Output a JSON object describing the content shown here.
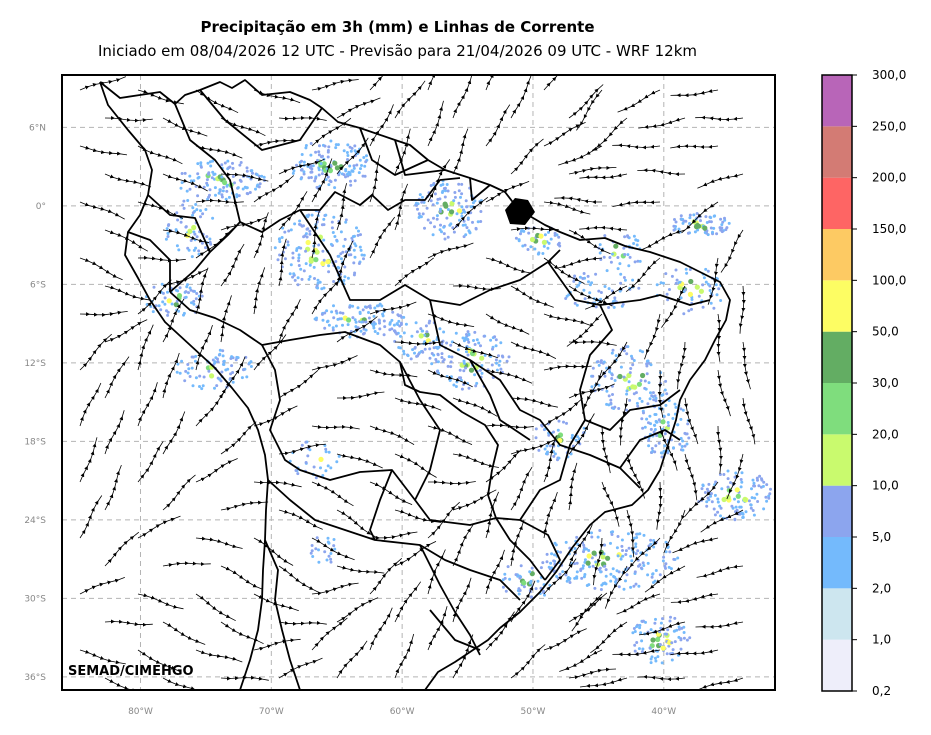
{
  "title": "Precipitação em 3h (mm) e Linhas de Corrente",
  "subtitle": "Iniciado em 08/04/2026 12 UTC - Previsão para 21/04/2026 09 UTC - WRF 12km",
  "credit": "SEMAD/CIMEHGO",
  "map": {
    "lon_range": [
      -86,
      -31.5
    ],
    "lat_range": [
      -37,
      10
    ],
    "lat_ticks": [
      {
        "value": 6,
        "label": "6°N"
      },
      {
        "value": 0,
        "label": "0°"
      },
      {
        "value": -6,
        "label": "6°S"
      },
      {
        "value": -12,
        "label": "12°S"
      },
      {
        "value": -18,
        "label": "18°S"
      },
      {
        "value": -24,
        "label": "24°S"
      },
      {
        "value": -30,
        "label": "30°S"
      },
      {
        "value": -36,
        "label": "36°S"
      }
    ],
    "lon_ticks": [
      {
        "value": -80,
        "label": "80°W"
      },
      {
        "value": -70,
        "label": "70°W"
      },
      {
        "value": -60,
        "label": "60°W"
      },
      {
        "value": -50,
        "label": "50°W"
      },
      {
        "value": -40,
        "label": "40°W"
      }
    ],
    "grid": true,
    "colors": {
      "streamline": "#000000",
      "border": "#000000",
      "grid": "#b4b4b4"
    }
  },
  "colorbar": {
    "labels": [
      "0,2",
      "1,0",
      "2,0",
      "5,0",
      "10,0",
      "20,0",
      "30,0",
      "50,0",
      "100,0",
      "150,0",
      "200,0",
      "250,0",
      "300,0"
    ],
    "colors": [
      "#eeeefa",
      "#cde6ef",
      "#74bafc",
      "#8ca5ee",
      "#c9fa6e",
      "#7fdd7d",
      "#63ad63",
      "#fdfd63",
      "#fdca63",
      "#fe6564",
      "#d37b74",
      "#b865b8"
    ]
  }
}
